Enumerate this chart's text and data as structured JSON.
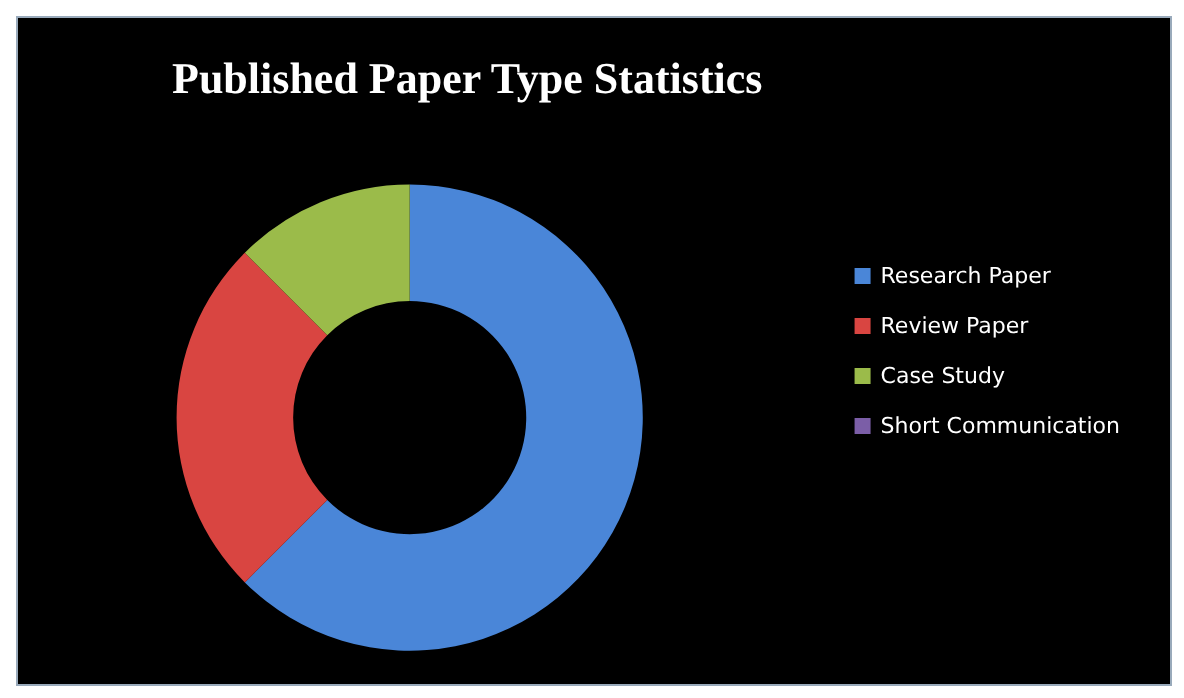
{
  "chart_data": {
    "type": "donut",
    "title": "Published Paper Type Statistics",
    "categories": [
      "Research Paper",
      "Review Paper",
      "Case Study",
      "Short Communication"
    ],
    "values": [
      62.5,
      25,
      12.5,
      0
    ],
    "colors": [
      "#4a86d8",
      "#d94541",
      "#9bbb4a",
      "#7b5ea7"
    ],
    "legend": "right"
  }
}
